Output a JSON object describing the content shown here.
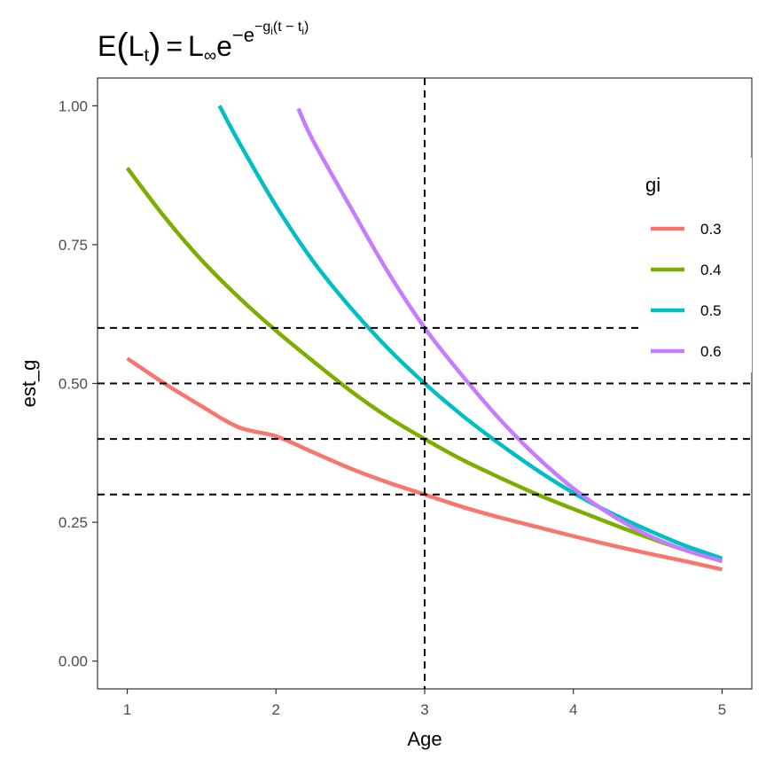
{
  "chart_data": {
    "type": "line",
    "title": {
      "E": "E",
      "L": "L",
      "t_sub": "t",
      "equals": "=",
      "L_inf": "L",
      "inf_sub": "∞",
      "e": "e",
      "exponent": "−e",
      "exp2": "−g",
      "exp2_sub": "i",
      "exp2_tail": "(t − t",
      "tail_sub": "i",
      "tail_close": ")"
    },
    "xlabel": "Age",
    "ylabel": "est_g",
    "xlim": [
      0.8,
      5.2
    ],
    "ylim": [
      -0.05,
      1.05
    ],
    "x_ticks": [
      "1",
      "2",
      "3",
      "4",
      "5"
    ],
    "x_tick_values": [
      1,
      2,
      3,
      4,
      5
    ],
    "y_ticks": [
      "0.00",
      "0.25",
      "0.50",
      "0.75",
      "1.00"
    ],
    "y_tick_values": [
      0,
      0.25,
      0.5,
      0.75,
      1.0
    ],
    "grid": false,
    "legend": {
      "title": "gi",
      "position": "right-inside",
      "entries": [
        "0.3",
        "0.4",
        "0.5",
        "0.6"
      ]
    },
    "series": [
      {
        "name": "0.3",
        "color": "#F8766D",
        "x": [
          1.0,
          1.25,
          1.5,
          1.75,
          2.0,
          2.25,
          2.5,
          2.75,
          3.0,
          3.25,
          3.5,
          3.75,
          4.0,
          4.25,
          4.5,
          4.75,
          5.0
        ],
        "values": [
          0.545,
          0.5,
          0.459,
          0.421,
          0.405,
          0.376,
          0.347,
          0.322,
          0.3,
          0.278,
          0.259,
          0.242,
          0.225,
          0.209,
          0.194,
          0.18,
          0.165
        ]
      },
      {
        "name": "0.4",
        "color": "#7CAE00",
        "x": [
          1.0,
          1.25,
          1.5,
          1.75,
          2.0,
          2.25,
          2.5,
          2.75,
          3.0,
          3.25,
          3.5,
          3.75,
          4.0,
          4.25,
          4.5,
          4.75,
          5.0
        ],
        "values": [
          0.888,
          0.8,
          0.722,
          0.655,
          0.595,
          0.54,
          0.487,
          0.44,
          0.4,
          0.363,
          0.331,
          0.301,
          0.274,
          0.248,
          0.223,
          0.2,
          0.18
        ]
      },
      {
        "name": "0.5",
        "color": "#00BFC4",
        "x": [
          1.62,
          1.75,
          2.0,
          2.25,
          2.5,
          2.75,
          3.0,
          3.25,
          3.5,
          3.75,
          4.0,
          4.25,
          4.5,
          4.75,
          5.0
        ],
        "values": [
          1.0,
          0.935,
          0.82,
          0.72,
          0.637,
          0.564,
          0.5,
          0.443,
          0.392,
          0.345,
          0.303,
          0.267,
          0.236,
          0.208,
          0.185
        ]
      },
      {
        "name": "0.6",
        "color": "#C77CFF",
        "x": [
          2.15,
          2.25,
          2.5,
          2.75,
          3.0,
          3.25,
          3.5,
          3.75,
          4.0,
          4.25,
          4.5,
          4.75,
          5.0
        ],
        "values": [
          0.995,
          0.937,
          0.818,
          0.702,
          0.6,
          0.515,
          0.437,
          0.369,
          0.311,
          0.264,
          0.227,
          0.2,
          0.18
        ]
      }
    ],
    "reference_lines": {
      "vertical": [
        3
      ],
      "horizontal": [
        0.3,
        0.4,
        0.5,
        0.6
      ]
    }
  }
}
